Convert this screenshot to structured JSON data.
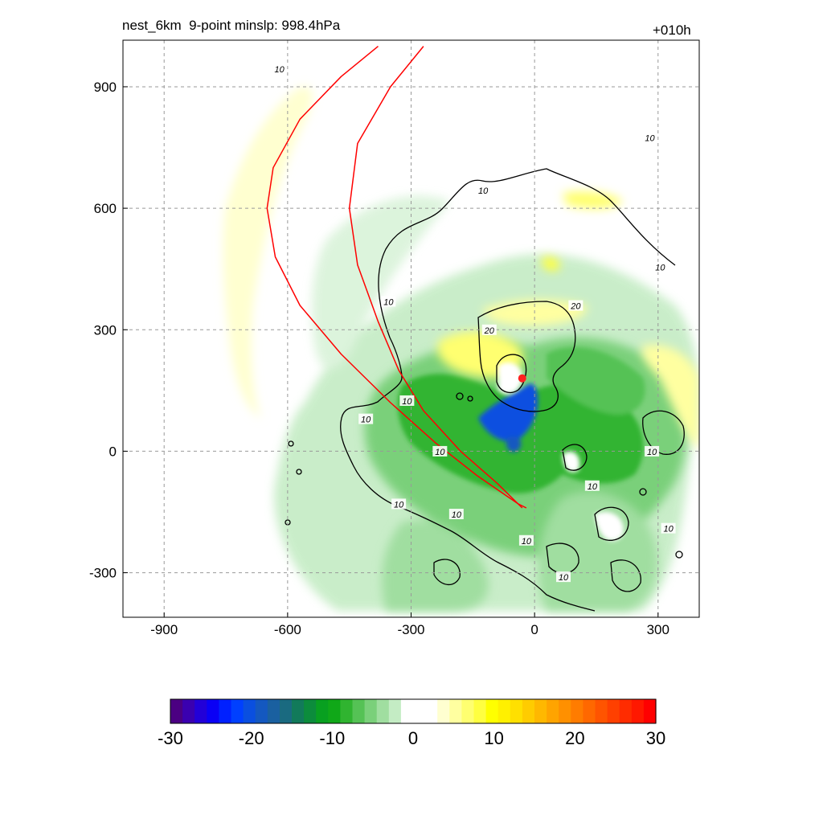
{
  "title_left": "nest_6km  9-point minslp: 998.4hPa",
  "title_right": "+010h",
  "chart_data": {
    "type": "heatmap",
    "title": "nest_6km  9-point minslp: 998.4hPa",
    "forecast_hour": "+010h",
    "xlim": [
      -1000,
      400
    ],
    "ylim": [
      -410,
      1015
    ],
    "x_ticks": [
      -900,
      -600,
      -300,
      0,
      300
    ],
    "y_ticks": [
      -300,
      0,
      300,
      600,
      900
    ],
    "grid": true,
    "colorbar": {
      "min": -30,
      "max": 30,
      "ticks": [
        -30,
        -20,
        -10,
        0,
        10,
        20,
        30
      ],
      "colors": [
        "#4b0082",
        "#3a00b0",
        "#2200d8",
        "#0a00f5",
        "#0020ff",
        "#0040ff",
        "#0a4fe0",
        "#1458c0",
        "#1a60a0",
        "#1a6a80",
        "#127a5a",
        "#0c8c3c",
        "#08a020",
        "#10a818",
        "#30b430",
        "#55c255",
        "#7ad07a",
        "#a0dea0",
        "#c4ecc4",
        "#ffffff",
        "#ffffff",
        "#ffffff",
        "#ffffd0",
        "#ffffa0",
        "#ffff70",
        "#ffff40",
        "#ffff00",
        "#fff000",
        "#ffe000",
        "#ffcc00",
        "#ffb800",
        "#ffa400",
        "#ff9000",
        "#ff7c00",
        "#ff6800",
        "#ff5400",
        "#ff4000",
        "#ff2c00",
        "#ff1800",
        "#ff0000"
      ]
    },
    "contour_levels": [
      10,
      20
    ],
    "contour_labels": [
      {
        "text": "10",
        "x": -620,
        "y": 940
      },
      {
        "text": "10",
        "x": -125,
        "y": 640
      },
      {
        "text": "10",
        "x": 280,
        "y": 770
      },
      {
        "text": "10",
        "x": 305,
        "y": 450
      },
      {
        "text": "10",
        "x": -355,
        "y": 365
      },
      {
        "text": "20",
        "x": 100,
        "y": 355
      },
      {
        "text": "20",
        "x": -110,
        "y": 295
      },
      {
        "text": "10",
        "x": -310,
        "y": 120
      },
      {
        "text": "10",
        "x": -410,
        "y": 75
      },
      {
        "text": "10",
        "x": -230,
        "y": -5
      },
      {
        "text": "10",
        "x": -330,
        "y": -135
      },
      {
        "text": "10",
        "x": -190,
        "y": -160
      },
      {
        "text": "10",
        "x": 140,
        "y": -90
      },
      {
        "text": "10",
        "x": 285,
        "y": -5
      },
      {
        "text": "10",
        "x": 325,
        "y": -195
      },
      {
        "text": "10",
        "x": -20,
        "y": -225
      },
      {
        "text": "10",
        "x": 70,
        "y": -315
      }
    ],
    "storm_center": {
      "x": -30,
      "y": 180
    },
    "tracks": [
      [
        [
          -380,
          1000
        ],
        [
          -470,
          925
        ],
        [
          -570,
          820
        ],
        [
          -635,
          700
        ],
        [
          -650,
          600
        ],
        [
          -630,
          480
        ],
        [
          -570,
          360
        ],
        [
          -470,
          240
        ],
        [
          -350,
          120
        ],
        [
          -240,
          20
        ],
        [
          -140,
          -60
        ],
        [
          -40,
          -130
        ],
        [
          -20,
          -140
        ]
      ],
      [
        [
          -270,
          1000
        ],
        [
          -350,
          900
        ],
        [
          -430,
          760
        ],
        [
          -450,
          600
        ],
        [
          -430,
          460
        ],
        [
          -380,
          320
        ],
        [
          -330,
          200
        ],
        [
          -270,
          100
        ],
        [
          -180,
          0
        ],
        [
          -90,
          -80
        ],
        [
          -30,
          -140
        ]
      ]
    ]
  }
}
